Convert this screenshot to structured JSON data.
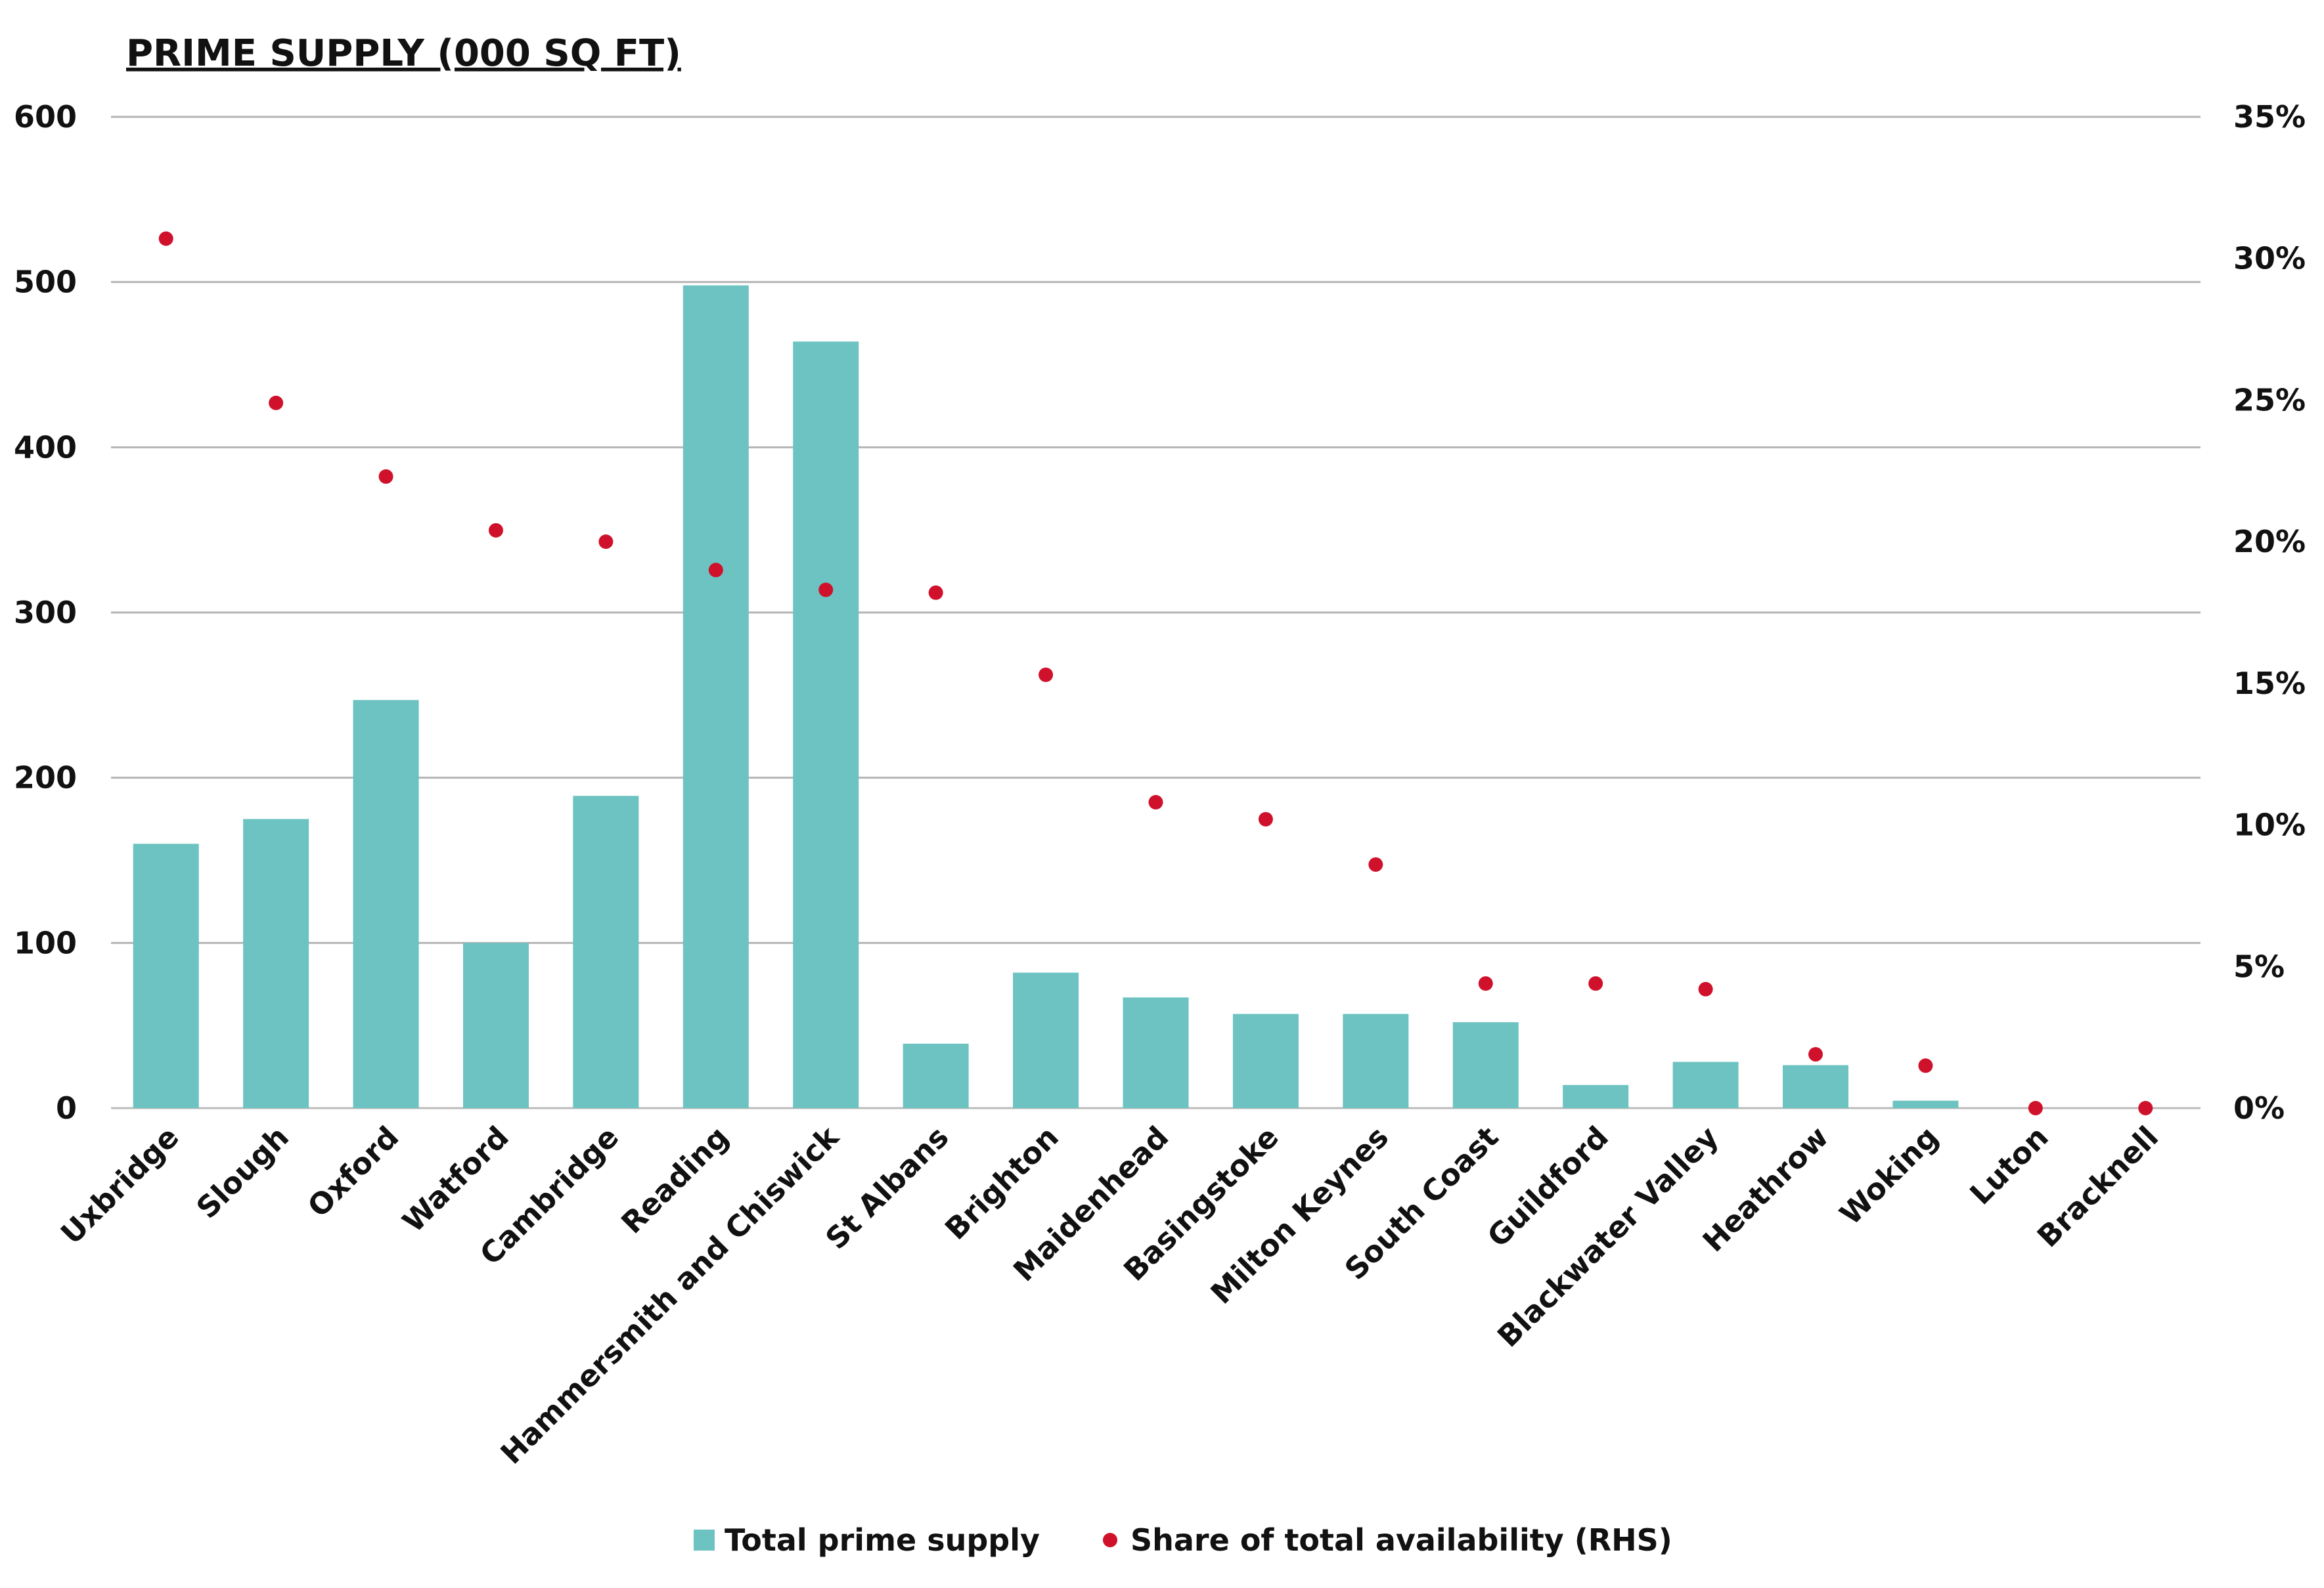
{
  "chart_data": {
    "type": "bar",
    "title": "PRIME SUPPLY (000 SQ FT)",
    "categories": [
      "Uxbridge",
      "Slough",
      "Oxford",
      "Watford",
      "Cambridge",
      "Reading",
      "Hammersmith and Chiswick",
      "St Albans",
      "Brighton",
      "Maidenhead",
      "Basingstoke",
      "Milton Keynes",
      "South Coast",
      "Guildford",
      "Blackwater Valley",
      "Heathrow",
      "Woking",
      "Luton",
      "Bracknell"
    ],
    "series": [
      {
        "name": "Total prime supply",
        "type": "bar",
        "axis": "left",
        "color": "#6cc3c1",
        "values": [
          160,
          175,
          247,
          100,
          189,
          498,
          464,
          39,
          82,
          67,
          57,
          57,
          52,
          14,
          28,
          26,
          4.5,
          0,
          0
        ]
      },
      {
        "name": "Share of total availability (RHS)",
        "type": "scatter",
        "axis": "right",
        "color": "#d0112b",
        "values": [
          30.7,
          24.9,
          22.3,
          20.4,
          20.0,
          19.0,
          18.3,
          18.2,
          15.3,
          10.8,
          10.2,
          8.6,
          4.4,
          4.4,
          4.2,
          1.9,
          1.5,
          0,
          0
        ]
      }
    ],
    "ylim": [
      0,
      600
    ],
    "yticks": [
      "0",
      "100",
      "200",
      "300",
      "400",
      "500",
      "600"
    ],
    "y2lim": [
      0,
      35
    ],
    "y2ticks": [
      "0%",
      "5%",
      "10%",
      "15%",
      "20%",
      "25%",
      "30%",
      "35%"
    ],
    "grid": true,
    "legend": "bottom-center"
  }
}
